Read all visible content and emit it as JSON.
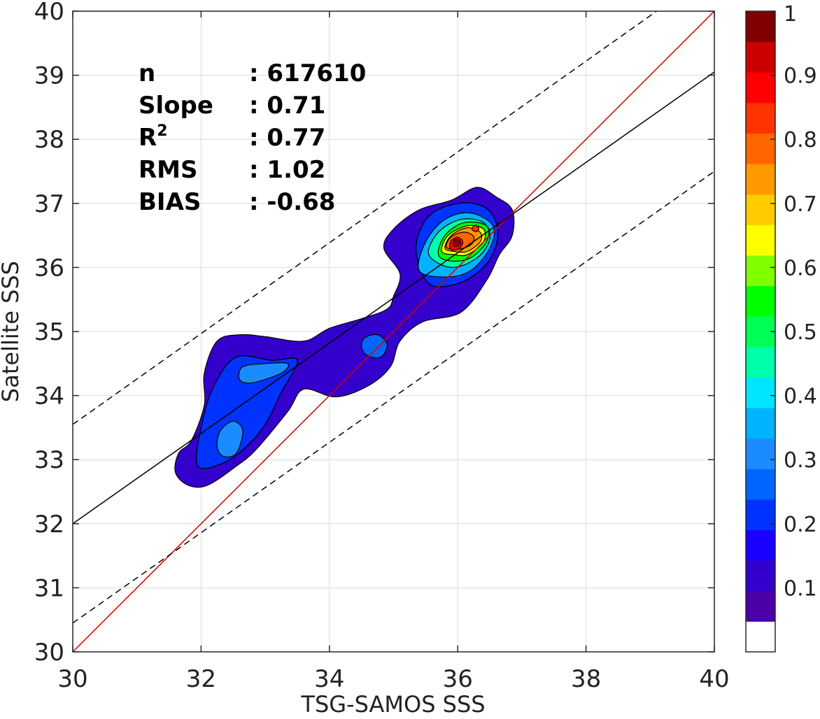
{
  "chart_data": {
    "type": "density-contour",
    "xlabel": "TSG-SAMOS SSS",
    "ylabel": "Satellite SSS",
    "xlim": [
      30,
      40
    ],
    "ylim": [
      30,
      40
    ],
    "xticks": [
      30,
      32,
      34,
      36,
      38,
      40
    ],
    "yticks": [
      30,
      31,
      32,
      33,
      34,
      35,
      36,
      37,
      38,
      39,
      40
    ],
    "grid": true,
    "stats": [
      {
        "name": "n",
        "sup": "",
        "value": ": 617610"
      },
      {
        "name": "Slope",
        "sup": "",
        "value": ": 0.71"
      },
      {
        "name": "R",
        "sup": "2",
        "value": ": 0.77"
      },
      {
        "name": "RMS",
        "sup": "",
        "value": ": 1.02"
      },
      {
        "name": "BIAS",
        "sup": "",
        "value": ": -0.68"
      }
    ],
    "lines": [
      {
        "name": "one-to-one",
        "color": "#d40000",
        "style": "solid",
        "x": [
          30,
          40
        ],
        "y": [
          30,
          40
        ]
      },
      {
        "name": "regression",
        "color": "#000000",
        "style": "solid",
        "x": [
          30,
          40
        ],
        "y": [
          32.0,
          39.05
        ]
      },
      {
        "name": "upper-bound",
        "color": "#000000",
        "style": "dashed",
        "x": [
          30,
          39.1
        ],
        "y": [
          33.55,
          40
        ]
      },
      {
        "name": "lower-bound",
        "color": "#000000",
        "style": "dashed",
        "x": [
          30,
          40
        ],
        "y": [
          30.45,
          37.5
        ]
      }
    ],
    "contours": [
      {
        "level": 0.05,
        "points": [
          [
            31.6,
            32.8
          ],
          [
            31.65,
            33.1
          ],
          [
            31.85,
            33.3
          ],
          [
            32.05,
            33.85
          ],
          [
            32.05,
            34.35
          ],
          [
            32.25,
            34.85
          ],
          [
            32.6,
            34.95
          ],
          [
            33.0,
            34.92
          ],
          [
            33.6,
            34.85
          ],
          [
            34.0,
            35.05
          ],
          [
            34.5,
            35.2
          ],
          [
            34.9,
            35.35
          ],
          [
            35.0,
            35.55
          ],
          [
            35.1,
            35.9
          ],
          [
            34.85,
            36.3
          ],
          [
            35.0,
            36.6
          ],
          [
            35.4,
            36.9
          ],
          [
            35.9,
            37.05
          ],
          [
            36.3,
            37.25
          ],
          [
            36.6,
            37.1
          ],
          [
            36.85,
            36.9
          ],
          [
            36.85,
            36.5
          ],
          [
            36.65,
            36.2
          ],
          [
            36.45,
            35.8
          ],
          [
            36.05,
            35.3
          ],
          [
            35.45,
            35.15
          ],
          [
            35.1,
            34.85
          ],
          [
            34.95,
            34.45
          ],
          [
            34.6,
            34.15
          ],
          [
            34.1,
            33.98
          ],
          [
            33.6,
            34.1
          ],
          [
            33.35,
            33.75
          ],
          [
            32.85,
            33.15
          ],
          [
            32.55,
            32.9
          ],
          [
            32.1,
            32.6
          ],
          [
            31.8,
            32.6
          ]
        ]
      },
      {
        "level": 0.15,
        "points": [
          [
            31.95,
            32.9
          ],
          [
            32.0,
            33.5
          ],
          [
            32.2,
            34.15
          ],
          [
            32.55,
            34.6
          ],
          [
            33.1,
            34.55
          ],
          [
            33.5,
            34.55
          ],
          [
            33.25,
            34.05
          ],
          [
            33.0,
            33.55
          ],
          [
            32.7,
            33.2
          ],
          [
            32.35,
            32.95
          ]
        ]
      },
      {
        "level": 0.15,
        "points": [
          [
            35.55,
            35.75
          ],
          [
            35.35,
            36.3
          ],
          [
            35.55,
            36.8
          ],
          [
            36.0,
            37.0
          ],
          [
            36.4,
            36.95
          ],
          [
            36.6,
            36.7
          ],
          [
            36.6,
            36.35
          ],
          [
            36.4,
            36.0
          ],
          [
            36.0,
            35.75
          ]
        ]
      },
      {
        "level": 0.2,
        "points": [
          [
            34.5,
            34.75
          ],
          [
            34.55,
            34.9
          ],
          [
            34.75,
            34.95
          ],
          [
            34.9,
            34.8
          ],
          [
            34.8,
            34.6
          ],
          [
            34.6,
            34.62
          ]
        ]
      },
      {
        "level": 0.25,
        "points": [
          [
            32.25,
            33.2
          ],
          [
            32.3,
            33.45
          ],
          [
            32.5,
            33.6
          ],
          [
            32.65,
            33.45
          ],
          [
            32.55,
            33.1
          ],
          [
            32.35,
            33.05
          ]
        ]
      },
      {
        "level": 0.25,
        "points": [
          [
            32.6,
            34.25
          ],
          [
            32.65,
            34.45
          ],
          [
            33.0,
            34.5
          ],
          [
            33.35,
            34.5
          ],
          [
            33.25,
            34.35
          ],
          [
            32.8,
            34.2
          ]
        ]
      },
      {
        "level": 0.3,
        "points": [
          [
            35.4,
            35.95
          ],
          [
            35.5,
            36.4
          ],
          [
            35.8,
            36.75
          ],
          [
            36.2,
            36.85
          ],
          [
            36.55,
            36.65
          ],
          [
            36.5,
            36.3
          ],
          [
            36.2,
            35.95
          ],
          [
            35.8,
            35.85
          ]
        ]
      },
      {
        "level": 0.4,
        "points": [
          [
            35.55,
            36.2
          ],
          [
            35.7,
            36.55
          ],
          [
            36.05,
            36.75
          ],
          [
            36.4,
            36.7
          ],
          [
            36.5,
            36.45
          ],
          [
            36.3,
            36.15
          ],
          [
            35.9,
            36.0
          ]
        ]
      },
      {
        "level": 0.5,
        "points": [
          [
            35.7,
            36.2
          ],
          [
            35.8,
            36.5
          ],
          [
            36.1,
            36.7
          ],
          [
            36.45,
            36.65
          ],
          [
            36.45,
            36.4
          ],
          [
            36.2,
            36.15
          ],
          [
            35.9,
            36.1
          ]
        ]
      },
      {
        "level": 0.6,
        "points": [
          [
            35.75,
            36.25
          ],
          [
            35.85,
            36.5
          ],
          [
            36.15,
            36.65
          ],
          [
            36.4,
            36.6
          ],
          [
            36.4,
            36.4
          ],
          [
            36.15,
            36.2
          ],
          [
            35.95,
            36.2
          ]
        ]
      },
      {
        "level": 0.7,
        "points": [
          [
            35.8,
            36.3
          ],
          [
            35.9,
            36.5
          ],
          [
            36.15,
            36.62
          ],
          [
            36.35,
            36.55
          ],
          [
            36.35,
            36.4
          ],
          [
            36.15,
            36.25
          ],
          [
            35.95,
            36.25
          ]
        ]
      },
      {
        "level": 0.75,
        "points": [
          [
            35.82,
            36.32
          ],
          [
            35.9,
            36.48
          ],
          [
            36.1,
            36.55
          ],
          [
            36.25,
            36.48
          ],
          [
            36.2,
            36.35
          ],
          [
            35.98,
            36.28
          ]
        ]
      },
      {
        "level": 0.85,
        "points": [
          [
            35.88,
            36.3
          ],
          [
            35.9,
            36.42
          ],
          [
            36.0,
            36.47
          ],
          [
            36.08,
            36.4
          ],
          [
            36.03,
            36.3
          ],
          [
            35.95,
            36.27
          ]
        ]
      },
      {
        "level": 0.95,
        "points": [
          [
            35.93,
            36.35
          ],
          [
            35.95,
            36.43
          ],
          [
            36.02,
            36.43
          ],
          [
            36.04,
            36.37
          ],
          [
            35.98,
            36.33
          ]
        ]
      },
      {
        "level": 0.8,
        "points": [
          [
            36.22,
            36.6
          ],
          [
            36.28,
            36.66
          ],
          [
            36.33,
            36.6
          ],
          [
            36.28,
            36.56
          ]
        ]
      }
    ],
    "colorbar": {
      "colors": [
        "#ffffff",
        "#4c00a8",
        "#3300cc",
        "#1a00ff",
        "#0033ff",
        "#0066ff",
        "#1a8cff",
        "#00b3ff",
        "#00e6ff",
        "#00ffaa",
        "#00ff55",
        "#00ff00",
        "#80ff00",
        "#ffff00",
        "#ffcc00",
        "#ff9900",
        "#ff6600",
        "#ff3300",
        "#ff0000",
        "#cc0000",
        "#800000"
      ],
      "ticks": [
        {
          "value": 0.1,
          "label": "0.1"
        },
        {
          "value": 0.2,
          "label": "0.2"
        },
        {
          "value": 0.3,
          "label": "0.3"
        },
        {
          "value": 0.4,
          "label": "0.4"
        },
        {
          "value": 0.5,
          "label": "0.5"
        },
        {
          "value": 0.6,
          "label": "0.6"
        },
        {
          "value": 0.7,
          "label": "0.7"
        },
        {
          "value": 0.8,
          "label": "0.8"
        },
        {
          "value": 0.9,
          "label": "0.9"
        },
        {
          "value": 1.0,
          "label": "1"
        }
      ],
      "range": [
        0,
        1
      ]
    }
  }
}
